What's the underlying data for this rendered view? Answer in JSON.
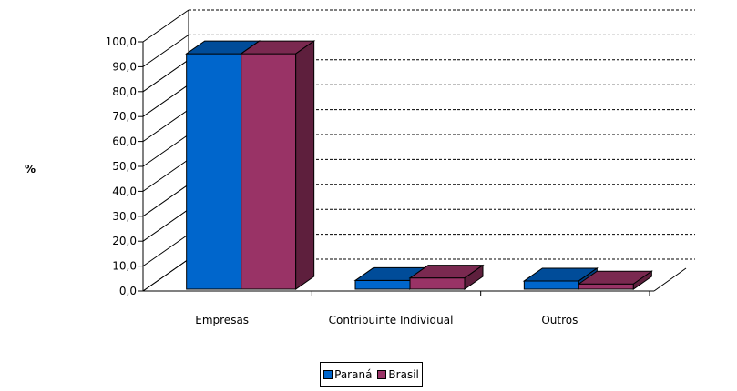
{
  "chart_data": {
    "type": "bar",
    "ylabel": "%",
    "categories": [
      "Empresas",
      "Contribuinte Individual",
      "Outros"
    ],
    "series": [
      {
        "name": "Paraná",
        "values": [
          94.5,
          3.5,
          3.3
        ],
        "color": "#0066CC",
        "top_color": "#004C99",
        "side_color": "#003F80"
      },
      {
        "name": "Brasil",
        "values": [
          94.5,
          4.5,
          2.1
        ],
        "color": "#993366",
        "top_color": "#7A2950",
        "side_color": "#5E1F3D"
      }
    ],
    "ylim": [
      0,
      100
    ],
    "yticks": [
      "0,0",
      "10,0",
      "20,0",
      "30,0",
      "40,0",
      "50,0",
      "60,0",
      "70,0",
      "80,0",
      "90,0",
      "100,0"
    ],
    "grid": true,
    "legend_position": "bottom"
  }
}
